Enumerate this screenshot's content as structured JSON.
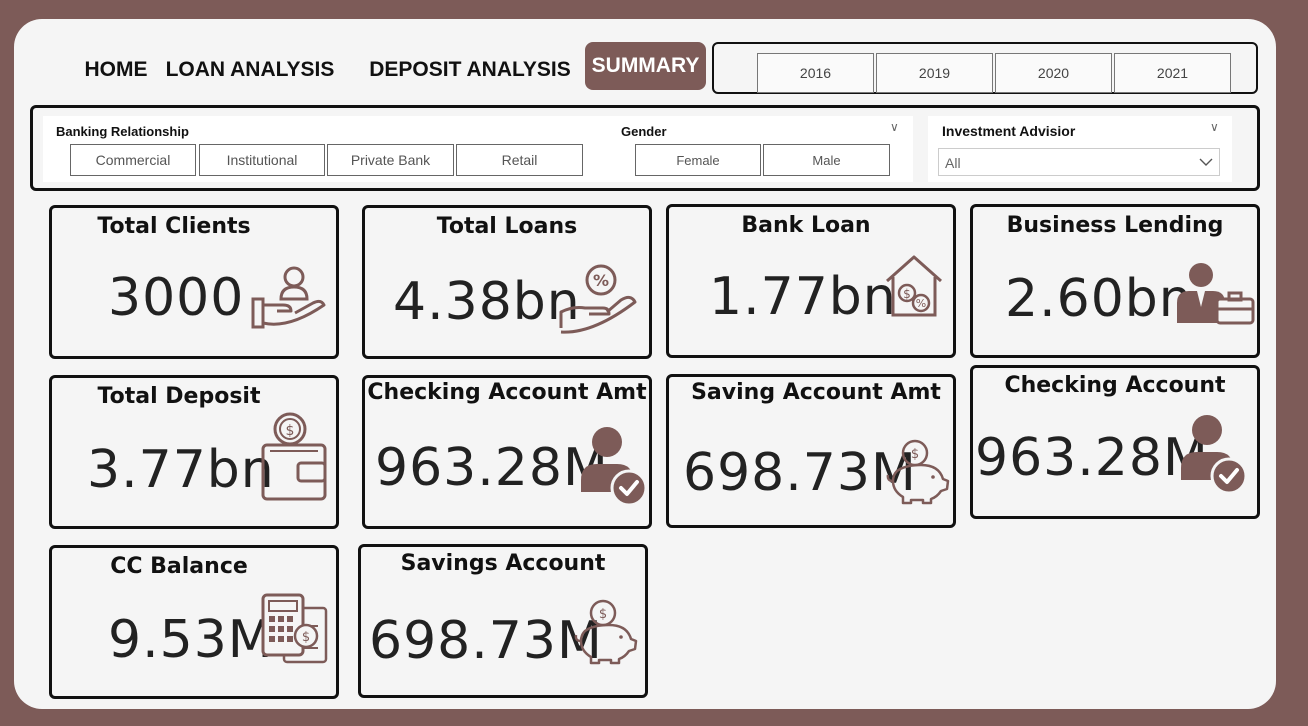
{
  "nav": {
    "home": "HOME",
    "loan_analysis": "LOAN ANALYSIS",
    "deposit_analysis": "DEPOSIT ANALYSIS",
    "summary": "SUMMARY"
  },
  "years": [
    "2016",
    "2019",
    "2020",
    "2021"
  ],
  "filters": {
    "banking_relationship": {
      "title": "Banking Relationship",
      "options": [
        "Commercial",
        "Institutional",
        "Private Bank",
        "Retail"
      ]
    },
    "gender": {
      "title": "Gender",
      "options": [
        "Female",
        "Male"
      ]
    },
    "investment_advisor": {
      "title": "Investment Advisior",
      "selected": "All"
    }
  },
  "kpis": {
    "total_clients": {
      "title": "Total Clients",
      "value": "3000",
      "icon": "hand-user-icon"
    },
    "total_loans": {
      "title": "Total Loans",
      "value": "4.38bn",
      "icon": "hand-percent-icon"
    },
    "bank_loan": {
      "title": "Bank Loan",
      "value": "1.77bn",
      "icon": "house-money-icon"
    },
    "business_lending": {
      "title": "Business Lending",
      "value": "2.60bn",
      "icon": "businessman-briefcase-icon"
    },
    "total_deposit": {
      "title": "Total Deposit",
      "value": "3.77bn",
      "icon": "wallet-coin-icon"
    },
    "checking_account_amt": {
      "title": "Checking Account Amt",
      "value": "963.28M",
      "icon": "user-check-icon"
    },
    "saving_account_amt": {
      "title": "Saving Account Amt",
      "value": "698.73M",
      "icon": "piggy-bank-icon"
    },
    "checking_account": {
      "title": "Checking Account",
      "value": "963.28M",
      "icon": "user-check-icon"
    },
    "cc_balance": {
      "title": "CC Balance",
      "value": "9.53M",
      "icon": "calculator-icon"
    },
    "savings_account": {
      "title": "Savings Account",
      "value": "698.73M",
      "icon": "piggy-bank-icon"
    }
  },
  "colors": {
    "accent": "#7d5b58",
    "panel": "#f5f5f5",
    "text": "#111111"
  }
}
